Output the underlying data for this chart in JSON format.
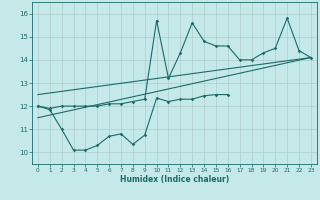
{
  "title": "",
  "xlabel": "Humidex (Indice chaleur)",
  "xlim": [
    -0.5,
    23.5
  ],
  "ylim": [
    9.5,
    16.5
  ],
  "xticks": [
    0,
    1,
    2,
    3,
    4,
    5,
    6,
    7,
    8,
    9,
    10,
    11,
    12,
    13,
    14,
    15,
    16,
    17,
    18,
    19,
    20,
    21,
    22,
    23
  ],
  "yticks": [
    10,
    11,
    12,
    13,
    14,
    15,
    16
  ],
  "bg_color": "#c5e8e8",
  "line_color": "#1a6b6b",
  "grid_color": "#b0cccc",
  "upper_x": [
    0,
    1,
    2,
    3,
    4,
    5,
    6,
    7,
    8,
    9,
    10,
    11,
    12,
    13,
    14,
    15,
    16,
    17,
    18,
    19,
    20,
    21,
    22,
    23
  ],
  "upper_y": [
    12.0,
    11.9,
    12.0,
    12.0,
    12.0,
    12.0,
    12.1,
    12.1,
    12.2,
    12.3,
    15.7,
    13.2,
    14.3,
    15.6,
    14.8,
    14.6,
    14.6,
    14.0,
    14.0,
    14.3,
    14.5,
    15.8,
    14.4,
    14.1
  ],
  "lower_x": [
    0,
    1,
    2,
    3,
    4,
    5,
    6,
    7,
    8,
    9,
    10,
    11,
    12,
    13,
    14,
    15,
    16
  ],
  "lower_y": [
    12.0,
    11.85,
    11.0,
    10.1,
    10.1,
    10.3,
    10.7,
    10.8,
    10.35,
    10.75,
    12.35,
    12.2,
    12.3,
    12.3,
    12.45,
    12.5,
    12.5
  ],
  "trend1_x": [
    0,
    23
  ],
  "trend1_y": [
    11.5,
    14.1
  ],
  "trend2_x": [
    0,
    23
  ],
  "trend2_y": [
    12.5,
    14.1
  ]
}
